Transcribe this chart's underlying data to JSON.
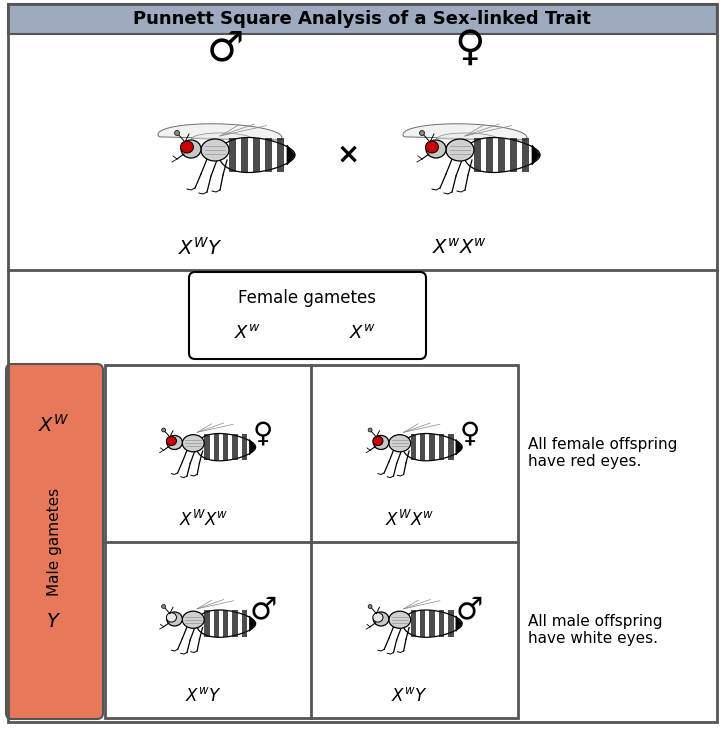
{
  "title": "Punnett Square Analysis of a Sex-linked Trait",
  "title_bg": "#9daabf",
  "title_fontsize": 13,
  "male_gametes_label": "Male gametes",
  "female_gametes_label": "Female gametes",
  "female_offspring_text": "All female offspring\nhave red eyes.",
  "male_offspring_text": "All male offspring\nhave white eyes.",
  "male_gametes_box_color": "#e8785a",
  "separator_color": "#555555",
  "border_color": "#555555",
  "cross_symbol": "×",
  "bg_color": "#ffffff",
  "fig_w": 7.25,
  "fig_h": 7.29,
  "dpi": 100
}
